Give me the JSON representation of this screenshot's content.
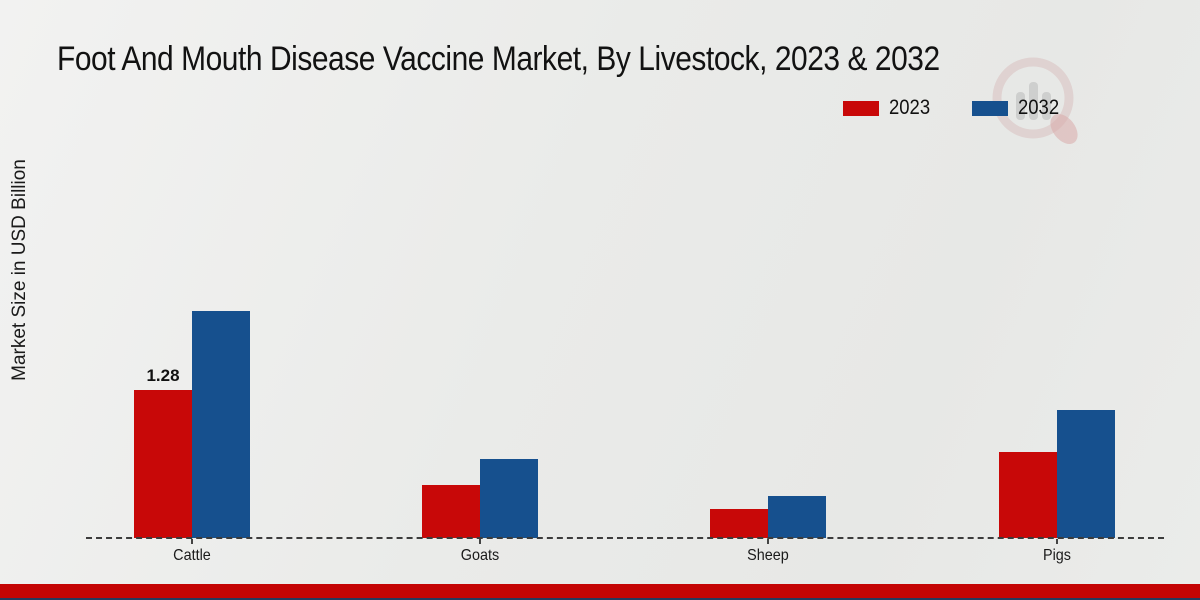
{
  "chart_data": {
    "type": "bar",
    "title": "Foot And Mouth Disease Vaccine Market, By Livestock, 2023 & 2032",
    "ylabel": "Market Size in USD Billion",
    "categories": [
      "Cattle",
      "Goats",
      "Sheep",
      "Pigs"
    ],
    "series": [
      {
        "name": "2023",
        "color": "#c80808",
        "values": [
          1.28,
          0.46,
          0.25,
          0.74
        ],
        "labels": [
          "1.28",
          "",
          "",
          ""
        ]
      },
      {
        "name": "2032",
        "color": "#16508e",
        "values": [
          1.96,
          0.68,
          0.36,
          1.11
        ],
        "labels": [
          "",
          "",
          "",
          ""
        ]
      }
    ],
    "ylim": [
      0,
      2.2
    ],
    "grid": false,
    "legend_position": "top-right",
    "baseline_style": "dashed"
  },
  "colors": {
    "bar_2023": "#c80808",
    "bar_2032": "#16508e",
    "footer_red": "#c40404",
    "footer_navy": "#243a5e",
    "background": "#eaebe9",
    "axis": "#3c3c3c"
  },
  "watermark": {
    "name": "brand-logo-watermark"
  }
}
